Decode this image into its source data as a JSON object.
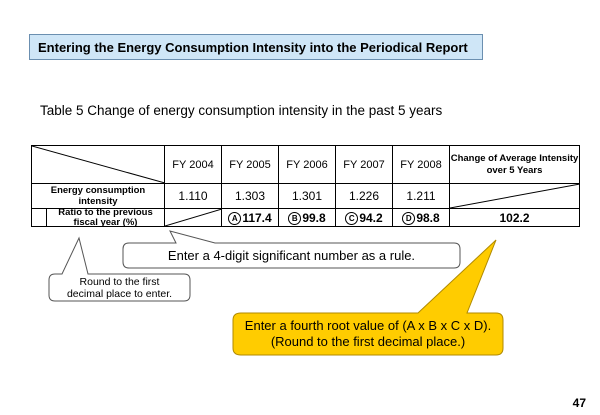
{
  "title": "Entering the Energy Consumption Intensity into the Periodical Report",
  "table_caption": "Table 5 Change of energy consumption intensity in the past 5 years",
  "table": {
    "headers": [
      "FY 2004",
      "FY 2005",
      "FY 2006",
      "FY 2007",
      "FY 2008"
    ],
    "avg_header": "Change of Average Intensity over 5 Years",
    "intensity_label": "Energy consumption intensity",
    "intensity_values": [
      "1.110",
      "1.303",
      "1.301",
      "1.226",
      "1.211"
    ],
    "ratio_label": "Ratio to the previous fiscal year (%)",
    "ratio_marks": [
      "A",
      "B",
      "C",
      "D"
    ],
    "ratio_values": [
      "117.4",
      "99.8",
      "94.2",
      "98.8"
    ],
    "avg_value": "102.2"
  },
  "callouts": {
    "significant": "Enter a 4-digit significant number as a rule.",
    "round_line1": "Round to the first",
    "round_line2": "decimal place to enter.",
    "fourth_root_line1": "Enter a fourth root value of (A x B x C x D).",
    "fourth_root_line2": "(Round to the first decimal place.)"
  },
  "page_number": "47",
  "colors": {
    "title_bg": "#cfe6f7",
    "yellow_callout": "#ffcc00"
  }
}
